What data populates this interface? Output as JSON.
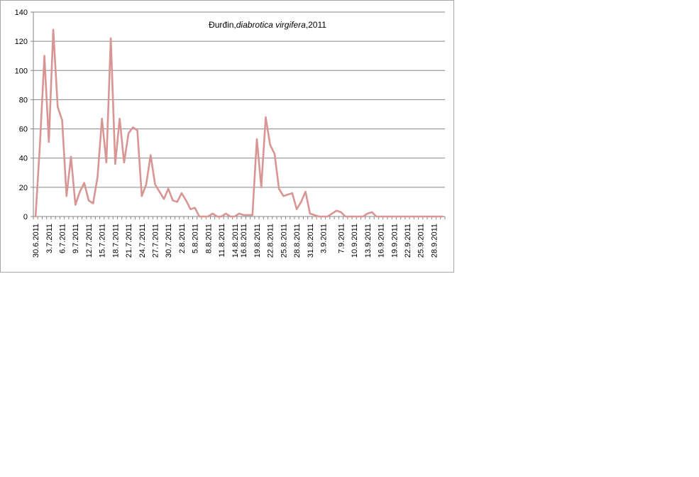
{
  "chart_data": {
    "type": "line",
    "title_parts": [
      "Đurđin,",
      "diabrotica virgifera",
      ",2011"
    ],
    "xlabel": "",
    "ylabel": "",
    "ylim": [
      0,
      140
    ],
    "yticks": [
      0,
      20,
      40,
      60,
      80,
      100,
      120,
      140
    ],
    "grid": true,
    "legend": "none",
    "line_color": "#d99594",
    "x": [
      "30.6.2011",
      "1.7.2011",
      "2.7.2011",
      "3.7.2011",
      "4.7.2011",
      "5.7.2011",
      "6.7.2011",
      "7.7.2011",
      "8.7.2011",
      "9.7.2011",
      "10.7.2011",
      "11.7.2011",
      "12.7.2011",
      "13.7.2011",
      "14.7.2011",
      "15.7.2011",
      "16.7.2011",
      "17.7.2011",
      "18.7.2011",
      "19.7.2011",
      "20.7.2011",
      "21.7.2011",
      "22.7.2011",
      "23.7.2011",
      "24.7.2011",
      "25.7.2011",
      "26.7.2011",
      "27.7.2011",
      "28.7.2011",
      "29.7.2011",
      "30.7.2011",
      "31.7.2011",
      "1.8.2011",
      "2.8.2011",
      "3.8.2011",
      "4.8.2011",
      "5.8.2011",
      "6.8.2011",
      "7.8.2011",
      "8.8.2011",
      "9.8.2011",
      "10.8.2011",
      "11.8.2011",
      "12.8.2011",
      "13.8.2011",
      "14.8.2011",
      "15.8.2011",
      "16.8.2011",
      "17.8.2011",
      "18.8.2011",
      "19.8.2011",
      "20.8.2011",
      "21.8.2011",
      "22.8.2011",
      "23.8.2011",
      "24.8.2011",
      "25.8.2011",
      "26.8.2011",
      "27.8.2011",
      "28.8.2011",
      "29.8.2011",
      "30.8.2011",
      "31.8.2011",
      "1.9.2011",
      "2.9.2011",
      "3.9.2011",
      "4.9.2011",
      "5.9.2011",
      "6.9.2011",
      "7.9.2011",
      "8.9.2011",
      "9.9.2011",
      "10.9.2011",
      "11.9.2011",
      "12.9.2011",
      "13.9.2011",
      "14.9.2011",
      "15.9.2011",
      "16.9.2011",
      "17.9.2011",
      "18.9.2011",
      "19.9.2011",
      "20.9.2011",
      "21.9.2011",
      "22.9.2011",
      "23.9.2011",
      "24.9.2011",
      "25.9.2011",
      "26.9.2011",
      "27.9.2011",
      "28.9.2011",
      "29.9.2011",
      "30.9.2011"
    ],
    "xtick_labels": [
      "30.6.2011",
      "3.7.2011",
      "6.7.2011",
      "9.7.2011",
      "12.7.2011",
      "15.7.2011",
      "18.7.2011",
      "21.7.2011",
      "24.7.2011",
      "27.7.2011",
      "30.7.2011",
      "2.8.2011",
      "5.8.2011",
      "8.8.2011",
      "11.8.2011",
      "14.8.2011",
      "16.8.2011",
      "19.8.2011",
      "22.8.2011",
      "25.8.2011",
      "28.8.2011",
      "31.8.2011",
      "3.9.2011",
      "7.9.2011",
      "10.9.2011",
      "13.9.2011",
      "16.9.2011",
      "19.9.2011",
      "22.9.2011",
      "25.9.2011",
      "28.9.2011"
    ],
    "values": [
      0,
      50,
      110,
      51,
      128,
      75,
      66,
      14,
      41,
      8,
      17,
      23,
      11,
      9,
      27,
      67,
      37,
      122,
      36,
      67,
      37,
      57,
      61,
      59,
      14,
      22,
      42,
      22,
      17,
      12,
      19,
      11,
      10,
      16,
      11,
      5,
      6,
      0,
      0,
      0,
      2,
      0,
      0,
      2,
      0,
      0,
      2,
      1,
      1,
      1,
      53,
      20,
      68,
      49,
      43,
      19,
      14,
      15,
      16,
      5,
      10,
      17,
      2,
      1,
      0,
      0,
      0,
      2,
      4,
      3,
      0,
      0,
      0,
      0,
      0,
      2,
      3,
      0,
      0,
      0,
      0,
      0,
      0,
      0,
      0,
      0,
      0,
      0,
      0,
      0,
      0,
      0,
      0
    ]
  }
}
